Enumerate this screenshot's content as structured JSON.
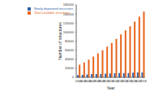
{
  "chart_data": {
    "type": "bar",
    "x_label": "Year",
    "y_label": "Number of structures",
    "categories": [
      "2004",
      "2005",
      "2006",
      "2007",
      "2008",
      "2009",
      "2010",
      "2011",
      "2012",
      "2013",
      "2014",
      "2015",
      "2016",
      "2017",
      "2018"
    ],
    "series": [
      {
        "name": "Newly deposited structures",
        "color": "#2f5fa7",
        "values": [
          5000,
          5500,
          6500,
          7000,
          7000,
          7500,
          8000,
          8500,
          9000,
          9500,
          9500,
          9500,
          10500,
          11000,
          11000
        ]
      },
      {
        "name": "Total available structures",
        "color": "#e8641b",
        "values": [
          28000,
          33000,
          39000,
          46000,
          53000,
          60000,
          68000,
          76000,
          85000,
          95000,
          104000,
          113000,
          123000,
          134000,
          145000
        ]
      }
    ],
    "ylim": [
      0,
      160000
    ],
    "yticks": [
      0,
      20000,
      40000,
      60000,
      80000,
      100000,
      120000,
      140000,
      160000
    ],
    "legend": "upper left",
    "grid": false
  }
}
